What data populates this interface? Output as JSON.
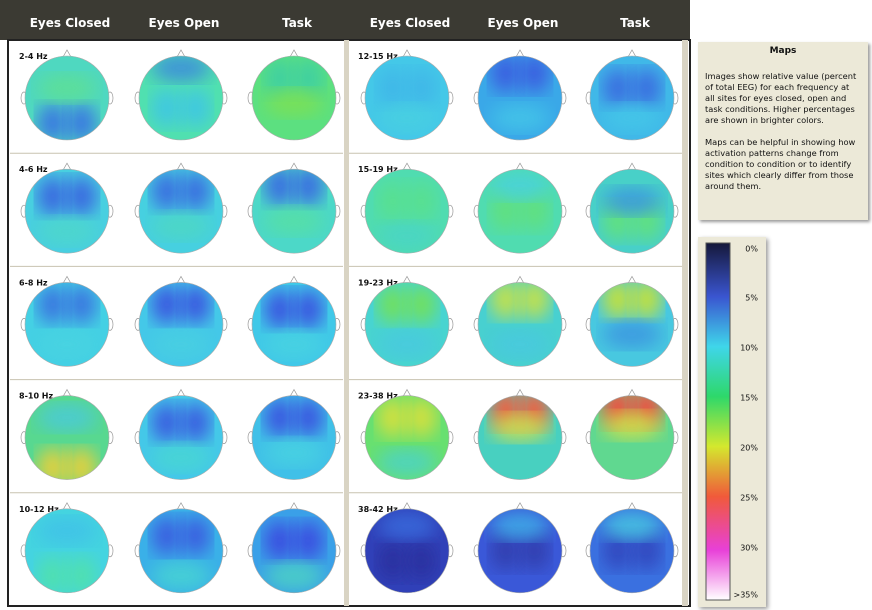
{
  "header": {
    "columns": [
      "Eyes Closed",
      "Eyes Open",
      "Task",
      "Eyes Closed",
      "Eyes Open",
      "Task"
    ]
  },
  "panels": [
    {
      "bands": [
        "2-4 Hz",
        "4-6 Hz",
        "6-8 Hz",
        "8-10 Hz",
        "10-12 Hz"
      ]
    },
    {
      "bands": [
        "12-15 Hz",
        "15-19 Hz",
        "19-23 Hz",
        "23-38 Hz",
        "38-42 Hz"
      ]
    }
  ],
  "info": {
    "title": "Maps",
    "paragraphs": [
      "Images show relative value (percent of total EEG) for each frequency at all sites for eyes closed, open and task conditions.  Higher percentages are shown in brighter colors.",
      "Maps can be helpful in showing how activation patterns change from condition to condition or to identify sites which clearly differ from those around them."
    ]
  },
  "scale": {
    "labels": [
      "0%",
      "5%",
      "10%",
      "15%",
      "20%",
      "25%",
      "30%",
      ">35%"
    ]
  }
}
